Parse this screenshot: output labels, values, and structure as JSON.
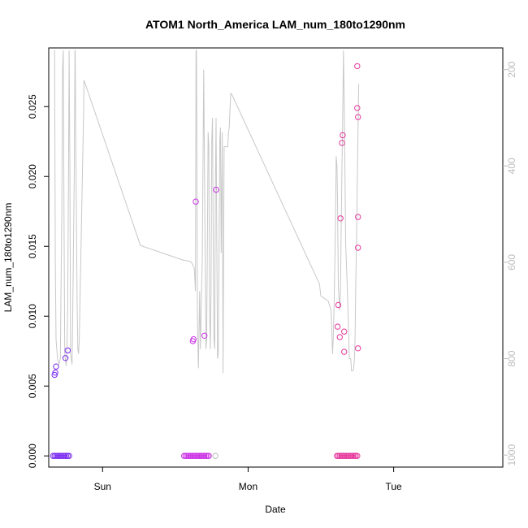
{
  "chart_data": {
    "type": "scatter",
    "title": "ATOM1 North_America LAM_num_180to1290nm",
    "xlabel": "Date",
    "ylabel": "LAM_num_180to1290nm",
    "x_unit": "days since Sat 00:00",
    "xlim": [
      -0.37,
      2.75
    ],
    "ylim": [
      -0.0008,
      0.0292
    ],
    "x_ticks": [
      {
        "value": 0.0,
        "label": "Sun"
      },
      {
        "value": 1.0,
        "label": "Mon"
      },
      {
        "value": 2.0,
        "label": "Tue"
      }
    ],
    "y_ticks": [
      {
        "value": 0.0,
        "label": "0.000"
      },
      {
        "value": 0.005,
        "label": "0.005"
      },
      {
        "value": 0.01,
        "label": "0.010"
      },
      {
        "value": 0.015,
        "label": "0.015"
      },
      {
        "value": 0.02,
        "label": "0.020"
      },
      {
        "value": 0.025,
        "label": "0.025"
      }
    ],
    "y2_lim": [
      1025,
      155
    ],
    "y2_ticks": [
      {
        "value": 200,
        "label": "200"
      },
      {
        "value": 400,
        "label": "400"
      },
      {
        "value": 600,
        "label": "600"
      },
      {
        "value": 800,
        "label": "800"
      },
      {
        "value": 1000,
        "label": "1000"
      }
    ],
    "line_color": "#c8c8c8",
    "pressure_line": [
      [
        -0.33,
        160
      ],
      [
        -0.325,
        600
      ],
      [
        -0.32,
        760
      ],
      [
        -0.31,
        800
      ],
      [
        -0.3,
        812
      ],
      [
        -0.29,
        800
      ],
      [
        -0.285,
        640
      ],
      [
        -0.28,
        500
      ],
      [
        -0.275,
        200
      ],
      [
        -0.27,
        160
      ],
      [
        -0.265,
        500
      ],
      [
        -0.26,
        790
      ],
      [
        -0.25,
        815
      ],
      [
        -0.245,
        780
      ],
      [
        -0.24,
        700
      ],
      [
        -0.235,
        460
      ],
      [
        -0.23,
        160
      ],
      [
        -0.225,
        400
      ],
      [
        -0.22,
        790
      ],
      [
        -0.21,
        812
      ],
      [
        -0.205,
        700
      ],
      [
        -0.2,
        560
      ],
      [
        -0.195,
        420
      ],
      [
        -0.19,
        160
      ],
      [
        -0.188,
        160
      ],
      [
        -0.185,
        320
      ],
      [
        -0.18,
        480
      ],
      [
        -0.175,
        680
      ],
      [
        -0.17,
        780
      ],
      [
        -0.165,
        790
      ],
      [
        -0.16,
        760
      ],
      [
        -0.155,
        680
      ],
      [
        -0.15,
        600
      ],
      [
        -0.145,
        520
      ],
      [
        -0.14,
        440
      ],
      [
        -0.135,
        360
      ],
      [
        -0.13,
        280
      ],
      [
        -0.128,
        222
      ],
      [
        0.26,
        565
      ],
      [
        0.55,
        595
      ],
      [
        0.6,
        598
      ],
      [
        0.61,
        600
      ],
      [
        0.63,
        612
      ],
      [
        0.638,
        660
      ],
      [
        0.642,
        160
      ],
      [
        0.645,
        160
      ],
      [
        0.648,
        400
      ],
      [
        0.652,
        720
      ],
      [
        0.658,
        820
      ],
      [
        0.663,
        735
      ],
      [
        0.667,
        660
      ],
      [
        0.672,
        780
      ],
      [
        0.68,
        660
      ],
      [
        0.685,
        600
      ],
      [
        0.69,
        400
      ],
      [
        0.695,
        200
      ],
      [
        0.7,
        400
      ],
      [
        0.705,
        600
      ],
      [
        0.71,
        780
      ],
      [
        0.715,
        760
      ],
      [
        0.72,
        560
      ],
      [
        0.725,
        330
      ],
      [
        0.73,
        360
      ],
      [
        0.735,
        700
      ],
      [
        0.74,
        780
      ],
      [
        0.745,
        660
      ],
      [
        0.75,
        350
      ],
      [
        0.755,
        300
      ],
      [
        0.76,
        560
      ],
      [
        0.765,
        760
      ],
      [
        0.77,
        780
      ],
      [
        0.775,
        460
      ],
      [
        0.78,
        300
      ],
      [
        0.785,
        560
      ],
      [
        0.79,
        800
      ],
      [
        0.795,
        790
      ],
      [
        0.8,
        600
      ],
      [
        0.805,
        350
      ],
      [
        0.81,
        320
      ],
      [
        0.815,
        580
      ],
      [
        0.822,
        330
      ],
      [
        0.828,
        830
      ],
      [
        0.835,
        360
      ],
      [
        0.86,
        360
      ],
      [
        0.865,
        330
      ],
      [
        0.87,
        320
      ],
      [
        0.88,
        250
      ],
      [
        0.885,
        250
      ],
      [
        1.49,
        645
      ],
      [
        1.5,
        670
      ],
      [
        1.55,
        680
      ],
      [
        1.57,
        700
      ],
      [
        1.575,
        740
      ],
      [
        1.58,
        790
      ],
      [
        1.585,
        755
      ],
      [
        1.59,
        700
      ],
      [
        1.6,
        520
      ],
      [
        1.605,
        380
      ],
      [
        1.61,
        400
      ],
      [
        1.615,
        480
      ],
      [
        1.62,
        650
      ],
      [
        1.63,
        700
      ],
      [
        1.635,
        650
      ],
      [
        1.64,
        520
      ],
      [
        1.645,
        400
      ],
      [
        1.65,
        300
      ],
      [
        1.655,
        160
      ],
      [
        1.66,
        260
      ],
      [
        1.665,
        400
      ],
      [
        1.67,
        560
      ],
      [
        1.68,
        640
      ],
      [
        1.69,
        740
      ],
      [
        1.695,
        800
      ],
      [
        1.705,
        800
      ],
      [
        1.71,
        825
      ],
      [
        1.72,
        825
      ],
      [
        1.725,
        820
      ],
      [
        1.73,
        800
      ],
      [
        1.735,
        760
      ],
      [
        1.74,
        640
      ],
      [
        1.745,
        560
      ],
      [
        1.75,
        440
      ],
      [
        1.755,
        330
      ],
      [
        1.76,
        230
      ]
    ],
    "point_series": [
      {
        "color": "#7b2cf0",
        "points": [
          [
            -0.33,
            0.0058
          ],
          [
            -0.325,
            0.00596
          ],
          [
            -0.32,
            0.0064
          ],
          [
            -0.255,
            0.007
          ],
          [
            -0.24,
            0.00755
          ],
          [
            -0.34,
            0.0
          ],
          [
            -0.33,
            0.0
          ],
          [
            -0.32,
            0.0
          ],
          [
            -0.31,
            0.0
          ],
          [
            -0.3,
            0.0
          ],
          [
            -0.29,
            0.0
          ],
          [
            -0.28,
            0.0
          ],
          [
            -0.27,
            0.0
          ],
          [
            -0.26,
            0.0
          ],
          [
            -0.25,
            0.0
          ],
          [
            -0.24,
            0.0
          ],
          [
            -0.23,
            0.0
          ]
        ]
      },
      {
        "color": "#cc33e6",
        "points": [
          [
            0.62,
            0.00822
          ],
          [
            0.625,
            0.00835
          ],
          [
            0.64,
            0.0182
          ],
          [
            0.7,
            0.0086
          ],
          [
            0.78,
            0.01905
          ],
          [
            0.56,
            0.0
          ],
          [
            0.57,
            0.0
          ],
          [
            0.58,
            0.0
          ],
          [
            0.59,
            0.0
          ],
          [
            0.6,
            0.0
          ],
          [
            0.61,
            0.0
          ],
          [
            0.62,
            0.0
          ],
          [
            0.63,
            0.0
          ],
          [
            0.64,
            0.0
          ],
          [
            0.65,
            0.0
          ],
          [
            0.66,
            0.0
          ],
          [
            0.67,
            0.0
          ],
          [
            0.68,
            0.0
          ],
          [
            0.69,
            0.0
          ],
          [
            0.7,
            0.0
          ],
          [
            0.71,
            0.0
          ],
          [
            0.72,
            0.0
          ],
          [
            0.73,
            0.0
          ]
        ]
      },
      {
        "color": "#e6399c",
        "points": [
          [
            1.62,
            0.0108
          ],
          [
            1.615,
            0.00925
          ],
          [
            1.635,
            0.017
          ],
          [
            1.63,
            0.0085
          ],
          [
            1.645,
            0.0224
          ],
          [
            1.65,
            0.02295
          ],
          [
            1.66,
            0.00745
          ],
          [
            1.66,
            0.0089
          ],
          [
            1.75,
            0.0279
          ],
          [
            1.75,
            0.0249
          ],
          [
            1.755,
            0.02425
          ],
          [
            1.755,
            0.0171
          ],
          [
            1.755,
            0.0149
          ],
          [
            1.755,
            0.0077
          ],
          [
            1.61,
            0.0
          ],
          [
            1.62,
            0.0
          ],
          [
            1.63,
            0.0
          ],
          [
            1.64,
            0.0
          ],
          [
            1.65,
            0.0
          ],
          [
            1.66,
            0.0
          ],
          [
            1.67,
            0.0
          ],
          [
            1.68,
            0.0
          ],
          [
            1.69,
            0.0
          ],
          [
            1.7,
            0.0
          ],
          [
            1.71,
            0.0
          ],
          [
            1.72,
            0.0
          ],
          [
            1.73,
            0.0
          ],
          [
            1.74,
            0.0
          ],
          [
            1.75,
            0.0
          ]
        ]
      },
      {
        "color": "#bbbbbb",
        "points": [
          [
            0.775,
            0.0
          ]
        ]
      }
    ]
  }
}
